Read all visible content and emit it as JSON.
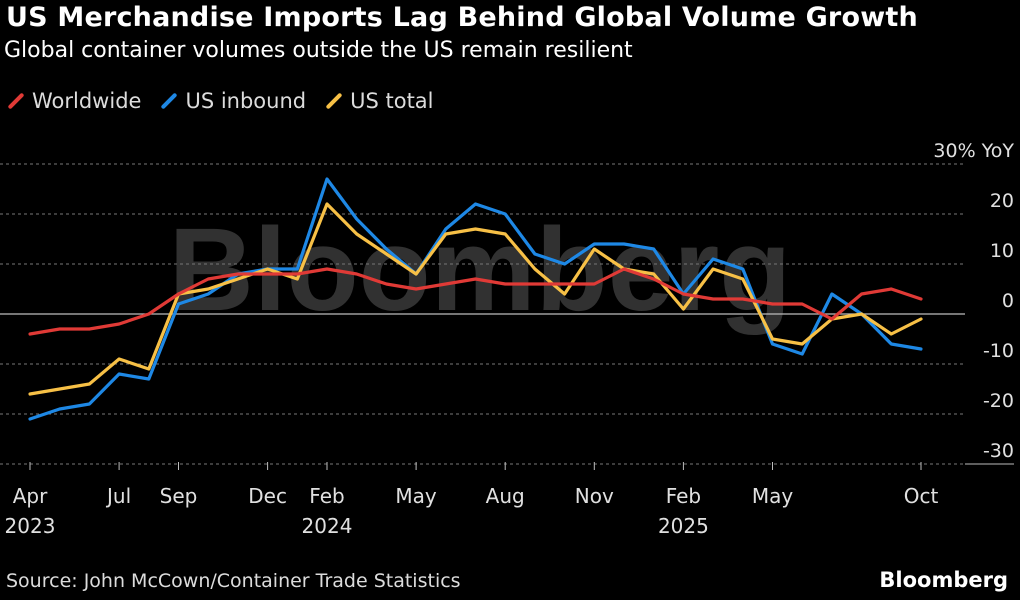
{
  "header": {
    "title": "US Merchandise Imports Lag Behind Global Volume Growth",
    "subtitle": "Global container volumes outside the US remain resilient"
  },
  "legend": {
    "items": [
      {
        "label": "Worldwide",
        "color": "#e03a36"
      },
      {
        "label": "US inbound",
        "color": "#1e88e5"
      },
      {
        "label": "US total",
        "color": "#f7c046"
      }
    ]
  },
  "footer": {
    "source": "Source: John McCown/Container Trade Statistics",
    "brand": "Bloomberg"
  },
  "watermark": "Bloomberg",
  "chart_data": {
    "type": "line",
    "title": "US Merchandise Imports Lag Behind Global Volume Growth",
    "subtitle": "Global container volumes outside the US remain resilient",
    "ylabel": "30% YoY",
    "ylim": [
      -30,
      30
    ],
    "yticks": [
      "30% YoY",
      "20",
      "10",
      "0",
      "-10",
      "-20",
      "-30"
    ],
    "xticks": [
      {
        "label": "Apr",
        "year": "2023"
      },
      {
        "label": "Jul",
        "year": ""
      },
      {
        "label": "Sep",
        "year": ""
      },
      {
        "label": "Dec",
        "year": ""
      },
      {
        "label": "Feb",
        "year": "2024"
      },
      {
        "label": "May",
        "year": ""
      },
      {
        "label": "Aug",
        "year": ""
      },
      {
        "label": "Nov",
        "year": ""
      },
      {
        "label": "Feb",
        "year": "2025"
      },
      {
        "label": "May",
        "year": ""
      },
      {
        "label": "Oct",
        "year": ""
      }
    ],
    "x": [
      "2023-04",
      "2023-05",
      "2023-06",
      "2023-07",
      "2023-08",
      "2023-09",
      "2023-10",
      "2023-11",
      "2023-12",
      "2024-01",
      "2024-02",
      "2024-03",
      "2024-04",
      "2024-05",
      "2024-06",
      "2024-07",
      "2024-08",
      "2024-09",
      "2024-10",
      "2024-11",
      "2024-12",
      "2025-01",
      "2025-02",
      "2025-03",
      "2025-04",
      "2025-05",
      "2025-06",
      "2025-07",
      "2025-08",
      "2025-09",
      "2025-10"
    ],
    "series": [
      {
        "name": "Worldwide",
        "color": "#e03a36",
        "values": [
          -4,
          -3,
          -3,
          -2,
          0,
          4,
          7,
          8,
          8,
          8,
          9,
          8,
          6,
          5,
          6,
          7,
          6,
          6,
          6,
          6,
          9,
          7,
          4,
          3,
          3,
          2,
          2,
          -1,
          4,
          5,
          3
        ]
      },
      {
        "name": "US inbound",
        "color": "#1e88e5",
        "values": [
          -21,
          -19,
          -18,
          -12,
          -13,
          2,
          4,
          8,
          9,
          9,
          27,
          19,
          13,
          8,
          17,
          22,
          20,
          12,
          10,
          14,
          14,
          13,
          4,
          11,
          9,
          -6,
          -8,
          4,
          0,
          -6,
          -7
        ]
      },
      {
        "name": "US total",
        "color": "#f7c046",
        "values": [
          -16,
          -15,
          -14,
          -9,
          -11,
          4,
          5,
          7,
          9,
          7,
          22,
          16,
          12,
          8,
          16,
          17,
          16,
          9,
          4,
          13,
          9,
          8,
          1,
          9,
          7,
          -5,
          -6,
          -1,
          0,
          -4,
          -1
        ]
      }
    ]
  }
}
